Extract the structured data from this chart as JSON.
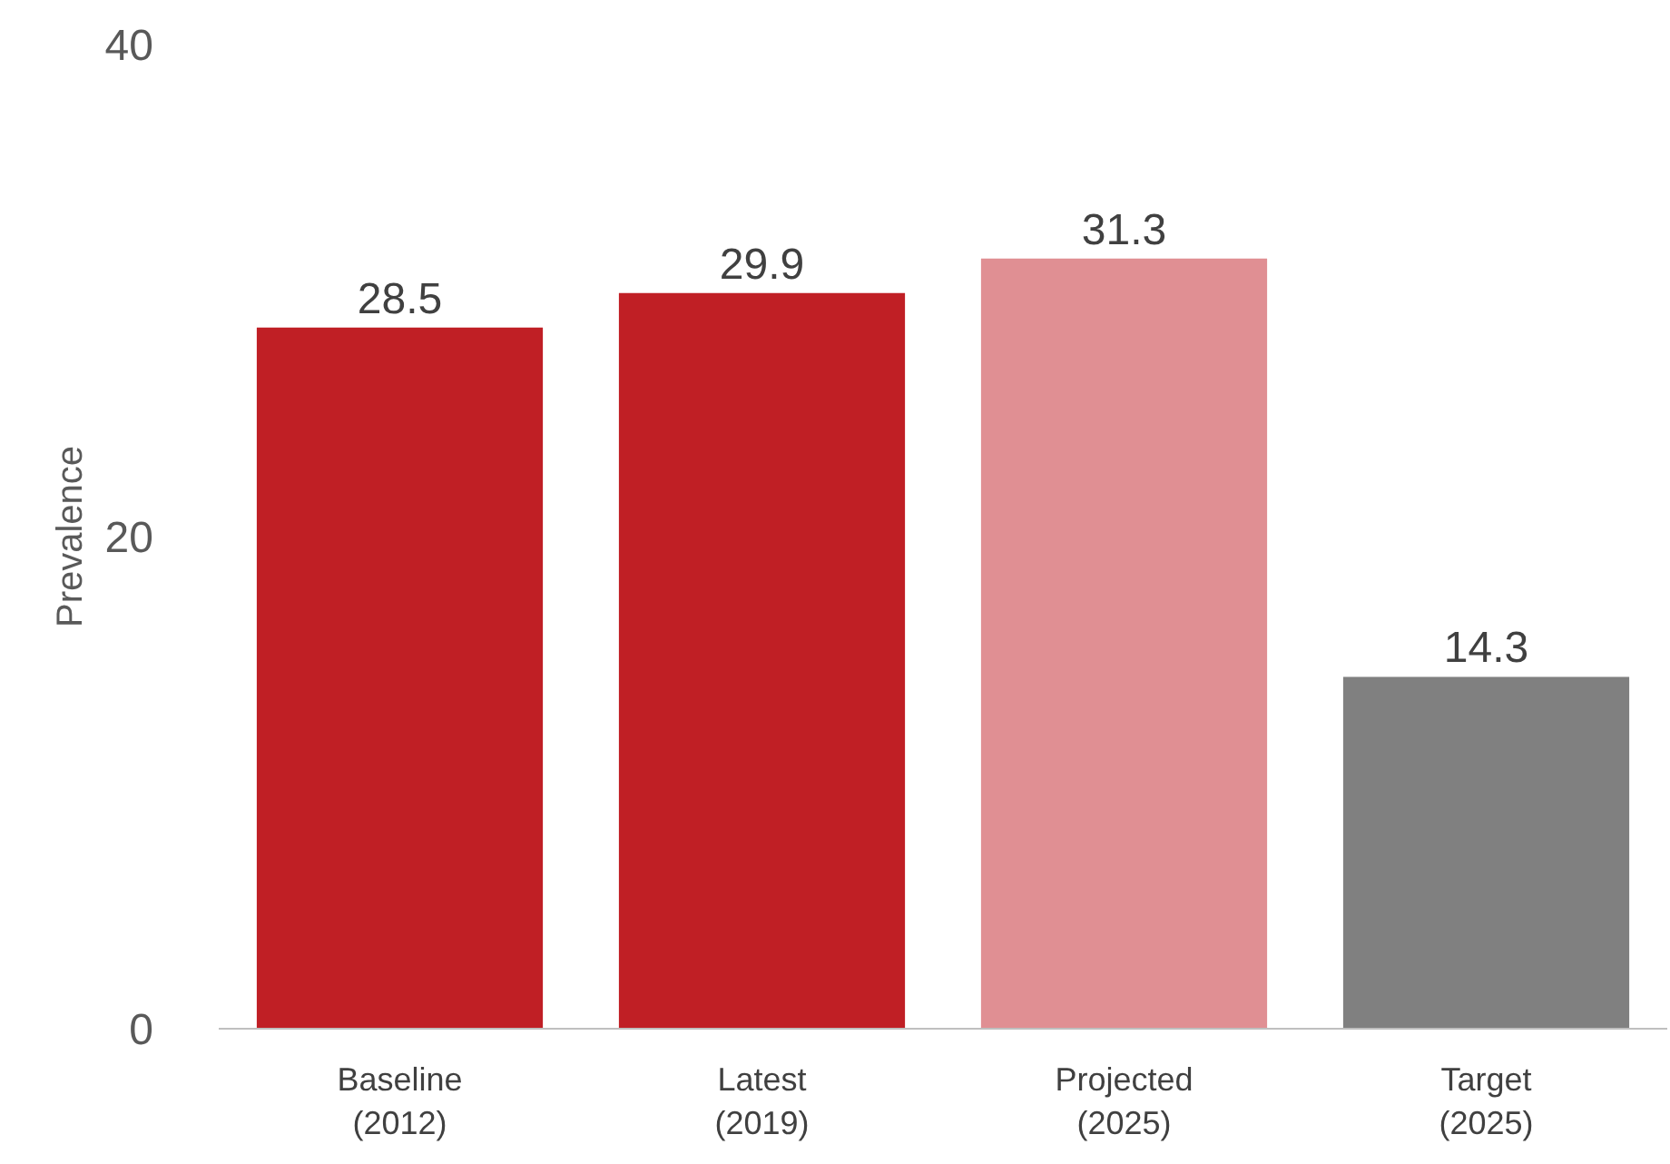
{
  "chart_data": {
    "type": "bar",
    "ylabel": "Prevalence",
    "categories": [
      "Baseline\n(2012)",
      "Latest\n(2019)",
      "Projected\n(2025)",
      "Target\n(2025)"
    ],
    "values": [
      28.5,
      29.9,
      31.3,
      14.3
    ],
    "colors": [
      "#c01f25",
      "#c01f25",
      "#e08f93",
      "#808080"
    ],
    "ylim": [
      0,
      40
    ],
    "yticks": [
      0,
      20,
      40
    ],
    "grid": false,
    "data_labels": true
  }
}
